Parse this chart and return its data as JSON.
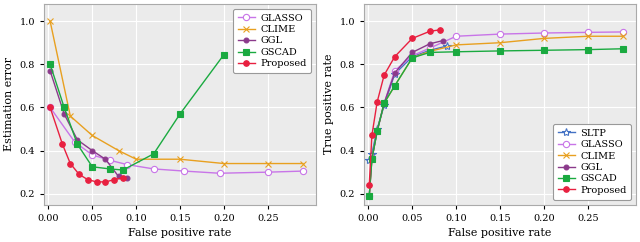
{
  "left": {
    "xlabel": "False positive rate",
    "ylabel": "Estimation error",
    "xlim": [
      -0.005,
      0.305
    ],
    "ylim": [
      0.15,
      1.08
    ],
    "xticks": [
      0.0,
      0.05,
      0.1,
      0.15,
      0.2,
      0.25
    ],
    "yticks": [
      0.2,
      0.4,
      0.6,
      0.8,
      1.0
    ],
    "series": {
      "GLASSO": {
        "x": [
          0.002,
          0.03,
          0.05,
          0.07,
          0.09,
          0.12,
          0.155,
          0.195,
          0.25,
          0.29
        ],
        "y": [
          0.6,
          0.44,
          0.38,
          0.355,
          0.335,
          0.315,
          0.305,
          0.295,
          0.3,
          0.305
        ],
        "color": "#c875e8",
        "marker": "o",
        "mfc": "white",
        "ms": 4.5
      },
      "CLIME": {
        "x": [
          0.002,
          0.025,
          0.05,
          0.08,
          0.1,
          0.15,
          0.2,
          0.25,
          0.29
        ],
        "y": [
          1.0,
          0.56,
          0.47,
          0.4,
          0.36,
          0.36,
          0.34,
          0.34,
          0.34
        ],
        "color": "#e8a020",
        "marker": "x",
        "mfc": "#e8a020",
        "ms": 5
      },
      "GGL": {
        "x": [
          0.002,
          0.018,
          0.033,
          0.05,
          0.065,
          0.08,
          0.09
        ],
        "y": [
          0.77,
          0.57,
          0.45,
          0.4,
          0.36,
          0.28,
          0.275
        ],
        "color": "#8b3a8b",
        "marker": "o",
        "mfc": "#8b3a8b",
        "ms": 3.5
      },
      "GSCAD": {
        "x": [
          0.002,
          0.018,
          0.033,
          0.05,
          0.07,
          0.085,
          0.12,
          0.15,
          0.2
        ],
        "y": [
          0.8,
          0.6,
          0.43,
          0.325,
          0.315,
          0.31,
          0.385,
          0.57,
          0.845
        ],
        "color": "#1aaa40",
        "marker": "s",
        "mfc": "#1aaa40",
        "ms": 4
      },
      "Proposed": {
        "x": [
          0.002,
          0.016,
          0.025,
          0.035,
          0.045,
          0.055,
          0.065,
          0.075,
          0.085
        ],
        "y": [
          0.6,
          0.43,
          0.34,
          0.29,
          0.265,
          0.255,
          0.255,
          0.265,
          0.275
        ],
        "color": "#e82040",
        "marker": "o",
        "mfc": "#e82040",
        "ms": 4
      }
    },
    "legend_order": [
      "GLASSO",
      "CLIME",
      "GGL",
      "GSCAD",
      "Proposed"
    ],
    "legend_loc": "upper right"
  },
  "right": {
    "xlabel": "False positive rate",
    "ylabel": "True positive rate",
    "xlim": [
      -0.005,
      0.305
    ],
    "ylim": [
      0.15,
      1.08
    ],
    "xticks": [
      0.0,
      0.05,
      0.1,
      0.15,
      0.2,
      0.25
    ],
    "yticks": [
      0.2,
      0.4,
      0.6,
      0.8,
      1.0
    ],
    "series": {
      "SLTP": {
        "x": [
          0.001,
          0.004,
          0.01,
          0.018,
          0.03,
          0.05,
          0.07,
          0.09
        ],
        "y": [
          0.355,
          0.385,
          0.5,
          0.61,
          0.755,
          0.835,
          0.865,
          0.885
        ],
        "color": "#4472c4",
        "marker": "*",
        "mfc": "white",
        "ms": 6
      },
      "GLASSO": {
        "x": [
          0.001,
          0.004,
          0.01,
          0.018,
          0.03,
          0.05,
          0.07,
          0.1,
          0.15,
          0.2,
          0.25,
          0.29
        ],
        "y": [
          0.19,
          0.365,
          0.49,
          0.62,
          0.77,
          0.84,
          0.875,
          0.93,
          0.94,
          0.945,
          0.948,
          0.95
        ],
        "color": "#c875e8",
        "marker": "o",
        "mfc": "white",
        "ms": 4.5
      },
      "CLIME": {
        "x": [
          0.001,
          0.004,
          0.01,
          0.018,
          0.03,
          0.05,
          0.07,
          0.1,
          0.15,
          0.2,
          0.25,
          0.29
        ],
        "y": [
          0.19,
          0.36,
          0.49,
          0.62,
          0.7,
          0.83,
          0.86,
          0.89,
          0.9,
          0.92,
          0.93,
          0.93
        ],
        "color": "#e8a020",
        "marker": "x",
        "mfc": "#e8a020",
        "ms": 5
      },
      "GGL": {
        "x": [
          0.001,
          0.004,
          0.01,
          0.018,
          0.03,
          0.05,
          0.07,
          0.085
        ],
        "y": [
          0.19,
          0.36,
          0.49,
          0.62,
          0.76,
          0.855,
          0.895,
          0.91
        ],
        "color": "#8b3a8b",
        "marker": "o",
        "mfc": "#8b3a8b",
        "ms": 3.5
      },
      "GSCAD": {
        "x": [
          0.001,
          0.004,
          0.01,
          0.018,
          0.03,
          0.05,
          0.07,
          0.1,
          0.15,
          0.2,
          0.25,
          0.29
        ],
        "y": [
          0.19,
          0.36,
          0.49,
          0.62,
          0.7,
          0.83,
          0.855,
          0.858,
          0.862,
          0.865,
          0.868,
          0.872
        ],
        "color": "#1aaa40",
        "marker": "s",
        "mfc": "#1aaa40",
        "ms": 4
      },
      "Proposed": {
        "x": [
          0.001,
          0.004,
          0.01,
          0.018,
          0.03,
          0.05,
          0.07,
          0.082
        ],
        "y": [
          0.24,
          0.47,
          0.625,
          0.75,
          0.835,
          0.92,
          0.953,
          0.96
        ],
        "color": "#e82040",
        "marker": "o",
        "mfc": "#e82040",
        "ms": 4
      }
    },
    "legend_order": [
      "SLTP",
      "GLASSO",
      "CLIME",
      "GGL",
      "GSCAD",
      "Proposed"
    ],
    "legend_loc": "lower right"
  },
  "figsize": [
    6.4,
    2.42
  ],
  "dpi": 100,
  "background_color": "#ebebeb",
  "grid_color": "#ffffff",
  "font_family": "DejaVu Serif"
}
